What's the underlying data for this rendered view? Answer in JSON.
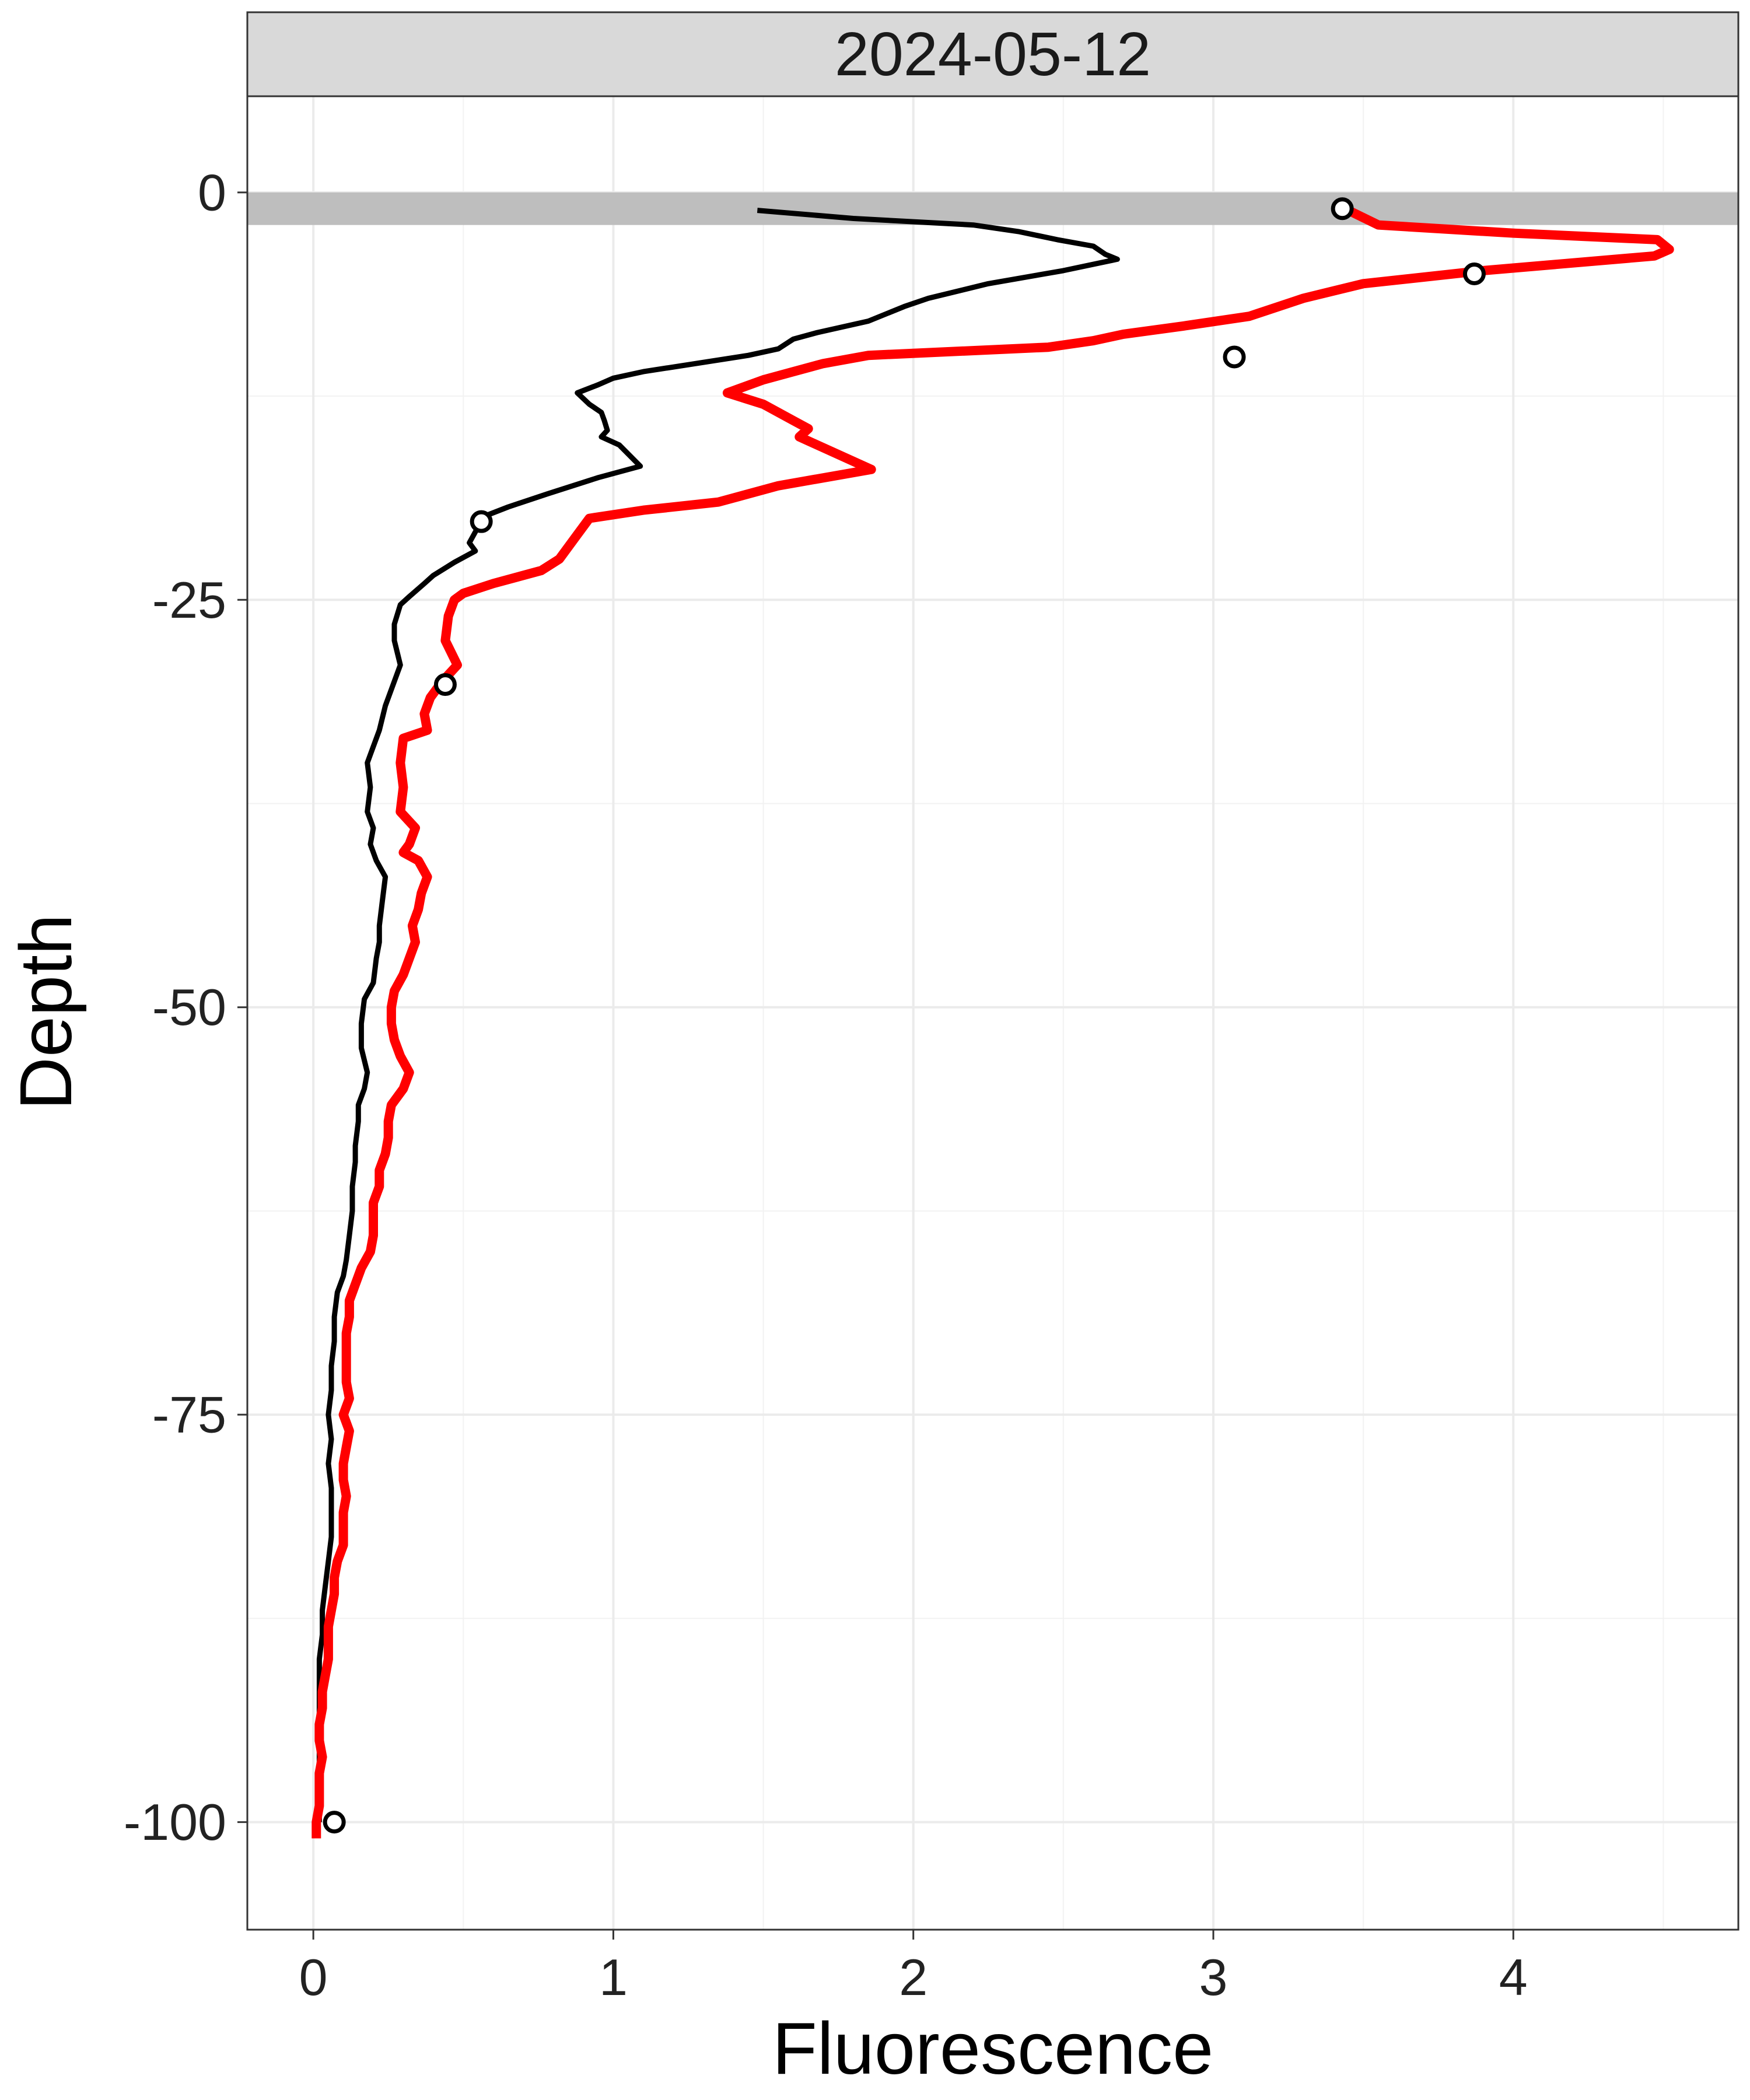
{
  "chart_data": {
    "type": "line",
    "panel": "2024-05-12",
    "xlabel": "Fluorescence",
    "ylabel": "Depth",
    "xlim": [
      -0.22,
      4.75
    ],
    "ylim": [
      -106.6,
      5.9
    ],
    "x_ticks": [
      0,
      1,
      2,
      3,
      4
    ],
    "y_ticks": [
      0,
      -25,
      -50,
      -75,
      -100
    ],
    "grid": true,
    "legend": "none",
    "surface_band": {
      "y_from": -2,
      "y_to": 0,
      "color": "#bebebe"
    },
    "series": [
      {
        "color": "#000000",
        "points": [
          [
            1.48,
            -1.1
          ],
          [
            1.8,
            -1.6
          ],
          [
            2.2,
            -2
          ],
          [
            2.35,
            -2.4
          ],
          [
            2.48,
            -2.9
          ],
          [
            2.6,
            -3.3
          ],
          [
            2.64,
            -3.8
          ],
          [
            2.68,
            -4.1
          ],
          [
            2.5,
            -4.8
          ],
          [
            2.25,
            -5.6
          ],
          [
            2.05,
            -6.5
          ],
          [
            1.97,
            -7
          ],
          [
            1.85,
            -7.9
          ],
          [
            1.68,
            -8.6
          ],
          [
            1.6,
            -9
          ],
          [
            1.55,
            -9.6
          ],
          [
            1.45,
            -10
          ],
          [
            1.1,
            -11
          ],
          [
            1.0,
            -11.4
          ],
          [
            0.95,
            -11.8
          ],
          [
            0.88,
            -12.3
          ],
          [
            0.92,
            -13
          ],
          [
            0.96,
            -13.5
          ],
          [
            0.97,
            -14
          ],
          [
            0.98,
            -14.6
          ],
          [
            0.96,
            -15
          ],
          [
            1.02,
            -15.5
          ],
          [
            1.09,
            -16.8
          ],
          [
            0.95,
            -17.5
          ],
          [
            0.78,
            -18.5
          ],
          [
            0.65,
            -19.3
          ],
          [
            0.58,
            -19.8
          ],
          [
            0.55,
            -20.5
          ],
          [
            0.52,
            -21.5
          ],
          [
            0.54,
            -22
          ],
          [
            0.47,
            -22.7
          ],
          [
            0.4,
            -23.5
          ],
          [
            0.37,
            -24
          ],
          [
            0.32,
            -24.8
          ],
          [
            0.29,
            -25.3
          ],
          [
            0.27,
            -26.5
          ],
          [
            0.27,
            -27.5
          ],
          [
            0.29,
            -29
          ],
          [
            0.27,
            -30
          ],
          [
            0.24,
            -31.5
          ],
          [
            0.22,
            -33
          ],
          [
            0.2,
            -34
          ],
          [
            0.18,
            -35
          ],
          [
            0.19,
            -36.5
          ],
          [
            0.18,
            -38
          ],
          [
            0.2,
            -39
          ],
          [
            0.19,
            -40
          ],
          [
            0.21,
            -41
          ],
          [
            0.24,
            -42
          ],
          [
            0.23,
            -43.5
          ],
          [
            0.22,
            -45
          ],
          [
            0.22,
            -46
          ],
          [
            0.21,
            -47
          ],
          [
            0.2,
            -48.5
          ],
          [
            0.17,
            -49.5
          ],
          [
            0.16,
            -51
          ],
          [
            0.16,
            -52.5
          ],
          [
            0.18,
            -54
          ],
          [
            0.17,
            -55
          ],
          [
            0.15,
            -56
          ],
          [
            0.15,
            -57
          ],
          [
            0.14,
            -58.5
          ],
          [
            0.14,
            -59.5
          ],
          [
            0.13,
            -61
          ],
          [
            0.13,
            -62.5
          ],
          [
            0.12,
            -64
          ],
          [
            0.11,
            -65.5
          ],
          [
            0.1,
            -66.5
          ],
          [
            0.08,
            -67.5
          ],
          [
            0.07,
            -69
          ],
          [
            0.07,
            -70.5
          ],
          [
            0.06,
            -72
          ],
          [
            0.06,
            -73.5
          ],
          [
            0.05,
            -75
          ],
          [
            0.06,
            -76.5
          ],
          [
            0.05,
            -78
          ],
          [
            0.06,
            -79.5
          ],
          [
            0.06,
            -81
          ],
          [
            0.06,
            -82.5
          ],
          [
            0.05,
            -84
          ],
          [
            0.04,
            -85.5
          ],
          [
            0.03,
            -87
          ],
          [
            0.03,
            -88.5
          ],
          [
            0.02,
            -90
          ],
          [
            0.02,
            -91.5
          ],
          [
            0.02,
            -93
          ],
          [
            0.02,
            -95
          ],
          [
            0.02,
            -97
          ],
          [
            0.02,
            -98.5
          ],
          [
            0.02,
            -100
          ]
        ]
      },
      {
        "color": "#ff0000",
        "points": [
          [
            3.45,
            -1.1
          ],
          [
            3.55,
            -2
          ],
          [
            4.0,
            -2.5
          ],
          [
            4.48,
            -2.9
          ],
          [
            4.52,
            -3.5
          ],
          [
            4.47,
            -3.9
          ],
          [
            3.9,
            -4.8
          ],
          [
            3.5,
            -5.6
          ],
          [
            3.3,
            -6.5
          ],
          [
            3.12,
            -7.6
          ],
          [
            2.9,
            -8.2
          ],
          [
            2.7,
            -8.7
          ],
          [
            2.6,
            -9.1
          ],
          [
            2.45,
            -9.5
          ],
          [
            1.85,
            -10
          ],
          [
            1.7,
            -10.5
          ],
          [
            1.6,
            -11
          ],
          [
            1.5,
            -11.5
          ],
          [
            1.38,
            -12.3
          ],
          [
            1.5,
            -13
          ],
          [
            1.55,
            -13.5
          ],
          [
            1.6,
            -14
          ],
          [
            1.65,
            -14.5
          ],
          [
            1.62,
            -15
          ],
          [
            1.68,
            -15.5
          ],
          [
            1.86,
            -17
          ],
          [
            1.55,
            -18
          ],
          [
            1.35,
            -19
          ],
          [
            1.1,
            -19.5
          ],
          [
            0.92,
            -20
          ],
          [
            0.88,
            -21
          ],
          [
            0.84,
            -22
          ],
          [
            0.82,
            -22.5
          ],
          [
            0.76,
            -23.2
          ],
          [
            0.6,
            -24
          ],
          [
            0.5,
            -24.6
          ],
          [
            0.47,
            -25
          ],
          [
            0.45,
            -26
          ],
          [
            0.44,
            -27.5
          ],
          [
            0.48,
            -29
          ],
          [
            0.43,
            -30
          ],
          [
            0.39,
            -31
          ],
          [
            0.37,
            -32
          ],
          [
            0.38,
            -33
          ],
          [
            0.3,
            -33.5
          ],
          [
            0.29,
            -35
          ],
          [
            0.3,
            -36.5
          ],
          [
            0.29,
            -38
          ],
          [
            0.34,
            -39
          ],
          [
            0.32,
            -40
          ],
          [
            0.3,
            -40.5
          ],
          [
            0.35,
            -41
          ],
          [
            0.38,
            -42
          ],
          [
            0.36,
            -43
          ],
          [
            0.35,
            -44
          ],
          [
            0.33,
            -45
          ],
          [
            0.34,
            -46
          ],
          [
            0.32,
            -47
          ],
          [
            0.3,
            -48
          ],
          [
            0.27,
            -49
          ],
          [
            0.26,
            -50
          ],
          [
            0.26,
            -51
          ],
          [
            0.27,
            -52
          ],
          [
            0.29,
            -53
          ],
          [
            0.32,
            -54
          ],
          [
            0.3,
            -55
          ],
          [
            0.26,
            -56
          ],
          [
            0.25,
            -57
          ],
          [
            0.25,
            -58
          ],
          [
            0.24,
            -59
          ],
          [
            0.22,
            -60
          ],
          [
            0.22,
            -61
          ],
          [
            0.2,
            -62
          ],
          [
            0.2,
            -63
          ],
          [
            0.2,
            -64
          ],
          [
            0.19,
            -65
          ],
          [
            0.16,
            -66
          ],
          [
            0.14,
            -67
          ],
          [
            0.12,
            -68
          ],
          [
            0.12,
            -69
          ],
          [
            0.11,
            -70
          ],
          [
            0.11,
            -71
          ],
          [
            0.11,
            -72
          ],
          [
            0.11,
            -73
          ],
          [
            0.12,
            -74
          ],
          [
            0.1,
            -75
          ],
          [
            0.12,
            -76
          ],
          [
            0.11,
            -77
          ],
          [
            0.1,
            -78
          ],
          [
            0.1,
            -79
          ],
          [
            0.11,
            -80
          ],
          [
            0.1,
            -81
          ],
          [
            0.1,
            -82
          ],
          [
            0.1,
            -83
          ],
          [
            0.08,
            -84
          ],
          [
            0.07,
            -85
          ],
          [
            0.07,
            -86
          ],
          [
            0.06,
            -87
          ],
          [
            0.05,
            -88
          ],
          [
            0.05,
            -89
          ],
          [
            0.05,
            -90
          ],
          [
            0.04,
            -91
          ],
          [
            0.03,
            -92
          ],
          [
            0.03,
            -93
          ],
          [
            0.02,
            -94
          ],
          [
            0.02,
            -95
          ],
          [
            0.03,
            -96
          ],
          [
            0.02,
            -97
          ],
          [
            0.02,
            -98
          ],
          [
            0.02,
            -99
          ],
          [
            0.01,
            -100
          ],
          [
            0.01,
            -101
          ]
        ]
      },
      {
        "marker": "open-circle",
        "color": "#000000",
        "points": [
          [
            3.43,
            -1.0
          ],
          [
            3.87,
            -5.0
          ],
          [
            3.07,
            -10.1
          ],
          [
            0.56,
            -20.2
          ],
          [
            0.44,
            -30.2
          ],
          [
            0.07,
            -100.0
          ]
        ]
      }
    ]
  }
}
